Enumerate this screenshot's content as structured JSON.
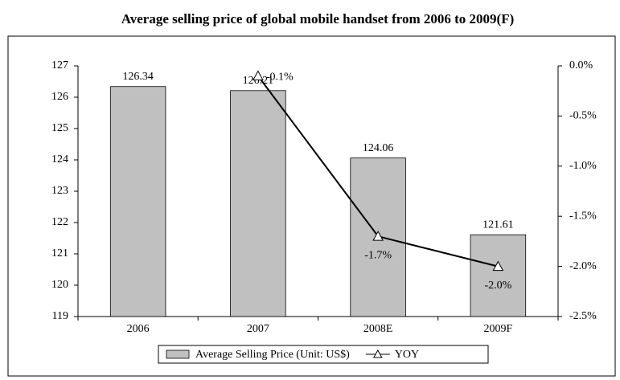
{
  "chart_data": {
    "type": "bar",
    "title": "Average selling price of global mobile handset from 2006 to 2009(F)",
    "categories": [
      "2006",
      "2007",
      "2008E",
      "2009F"
    ],
    "series": [
      {
        "name": "Average Selling Price (Unit: US$)",
        "type": "bar",
        "color": "#c0c0c0",
        "values": [
          126.34,
          126.21,
          124.06,
          121.61
        ]
      },
      {
        "name": "YOY",
        "type": "line",
        "axis": "y2",
        "color": "#000000",
        "values": [
          null,
          -0.1,
          -1.7,
          -2.0
        ],
        "value_labels": [
          null,
          "-0.1%",
          "-1.7%",
          "-2.0%"
        ]
      }
    ],
    "ylim": [
      119,
      127
    ],
    "yticks": [
      119,
      120,
      121,
      122,
      123,
      124,
      125,
      126,
      127
    ],
    "y2lim": [
      -2.5,
      0
    ],
    "y2ticks": [
      {
        "value": -2.5,
        "label": "-2.5%"
      },
      {
        "value": -2.0,
        "label": "-2.0%"
      },
      {
        "value": -1.5,
        "label": "-1.5%"
      },
      {
        "value": -1.0,
        "label": "-1.0%"
      },
      {
        "value": -0.5,
        "label": "-0.5%"
      },
      {
        "value": 0,
        "label": "0.0%"
      }
    ],
    "legend": "bottom",
    "grid": false
  }
}
